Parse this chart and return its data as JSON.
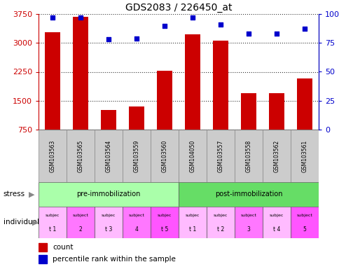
{
  "title": "GDS2083 / 226450_at",
  "samples": [
    "GSM103563",
    "GSM103565",
    "GSM103564",
    "GSM103559",
    "GSM103560",
    "GSM104050",
    "GSM103557",
    "GSM103558",
    "GSM103562",
    "GSM103561"
  ],
  "counts": [
    3270,
    3680,
    1260,
    1350,
    2270,
    3230,
    3060,
    1700,
    1700,
    2070
  ],
  "percentile_ranks": [
    97,
    97,
    78,
    79,
    90,
    97,
    91,
    83,
    83,
    87
  ],
  "ylim_left": [
    750,
    3750
  ],
  "ylim_right": [
    0,
    100
  ],
  "yticks_left": [
    750,
    1500,
    2250,
    3000,
    3750
  ],
  "yticks_right": [
    0,
    25,
    50,
    75,
    100
  ],
  "bar_color": "#cc0000",
  "dot_color": "#0000cc",
  "stress_groups": [
    {
      "label": "pre-immobilization",
      "start": 0,
      "end": 5,
      "color": "#aaffaa"
    },
    {
      "label": "post-immobilization",
      "start": 5,
      "end": 10,
      "color": "#66dd66"
    }
  ],
  "individual_labels_line1": [
    "subjec",
    "subject",
    "subjec",
    "subject",
    "subjec",
    "subjec",
    "subjec",
    "subject",
    "subjec",
    "subject"
  ],
  "individual_labels_line2": [
    "t 1",
    "2",
    "t 3",
    "4",
    "t 5",
    "t 1",
    "t 2",
    "3",
    "t 4",
    "5"
  ],
  "individual_colors": [
    "#ffbbff",
    "#ff77ff",
    "#ffbbff",
    "#ff77ff",
    "#ff55ff",
    "#ffbbff",
    "#ffbbff",
    "#ff77ff",
    "#ffbbff",
    "#ff55ff"
  ],
  "tick_label_color": "#cc0000",
  "right_tick_color": "#0000cc",
  "sample_bg_color": "#cccccc",
  "gray_arrow_color": "#888888"
}
